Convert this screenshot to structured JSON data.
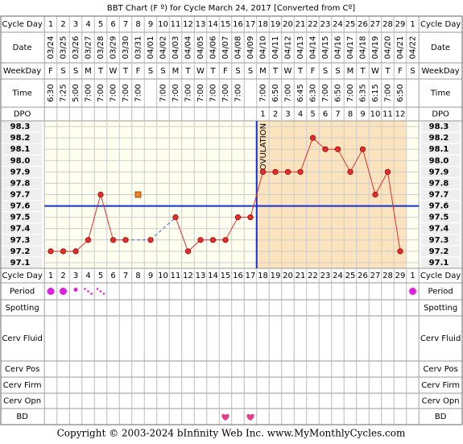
{
  "chart_data": {
    "type": "line",
    "title": "BBT Chart (F º) for Cycle March 24, 2017  [Converted from Cº]",
    "labels": {
      "cycle_day": "Cycle Day",
      "date": "Date",
      "weekday": "WeekDay",
      "time": "Time",
      "dpo": "DPO",
      "period": "Period",
      "spotting": "Spotting",
      "cerv_fluid": "Cerv Fluid",
      "cerv_pos": "Cerv Pos",
      "cerv_firm": "Cerv Firm",
      "cerv_opn": "Cerv Opn",
      "bd": "BD"
    },
    "cycle_days": [
      1,
      2,
      3,
      4,
      5,
      6,
      7,
      8,
      9,
      10,
      11,
      12,
      13,
      14,
      15,
      16,
      17,
      18,
      19,
      20,
      21,
      22,
      23,
      24,
      25,
      26,
      27,
      28,
      29,
      1
    ],
    "dates": [
      "03/24",
      "03/25",
      "03/26",
      "03/27",
      "03/28",
      "03/29",
      "03/30",
      "03/31",
      "04/01",
      "04/02",
      "04/03",
      "04/04",
      "04/05",
      "04/06",
      "04/07",
      "04/08",
      "04/09",
      "04/10",
      "04/11",
      "04/12",
      "04/13",
      "04/14",
      "04/15",
      "04/16",
      "04/17",
      "04/18",
      "04/19",
      "04/20",
      "04/21",
      "04/22"
    ],
    "weekdays": [
      "F",
      "S",
      "S",
      "M",
      "T",
      "W",
      "T",
      "F",
      "S",
      "S",
      "M",
      "T",
      "W",
      "T",
      "F",
      "S",
      "S",
      "M",
      "T",
      "W",
      "T",
      "F",
      "S",
      "S",
      "M",
      "T",
      "W",
      "T",
      "F",
      "S"
    ],
    "times": [
      "6:30",
      "7:25",
      "5:00",
      "7:00",
      "7:00",
      "7:00",
      "7:00",
      "7:00",
      null,
      "7:00",
      "7:00",
      "7:00",
      "7:00",
      "7:00",
      "7:00",
      "7:00",
      null,
      "7:00",
      "6:50",
      "7:00",
      "6:45",
      "6:30",
      "7:00",
      "6:50",
      "7:00",
      "6:35",
      "6:15",
      "7:00",
      "6:50",
      null
    ],
    "dpo": [
      null,
      null,
      null,
      null,
      null,
      null,
      null,
      null,
      null,
      null,
      null,
      null,
      null,
      null,
      null,
      null,
      null,
      1,
      2,
      3,
      4,
      5,
      6,
      7,
      8,
      9,
      10,
      11,
      12,
      null
    ],
    "values": [
      97.2,
      97.2,
      97.2,
      97.3,
      97.7,
      97.3,
      97.3,
      null,
      97.3,
      null,
      97.5,
      97.2,
      97.3,
      97.3,
      97.3,
      97.5,
      97.5,
      97.9,
      97.9,
      97.9,
      97.9,
      98.2,
      98.1,
      98.1,
      97.9,
      98.1,
      97.7,
      97.9,
      97.2,
      null
    ],
    "color": "#e03030",
    "discarded": [
      null,
      null,
      null,
      null,
      null,
      null,
      null,
      97.7,
      null,
      null,
      null,
      null,
      null,
      null,
      null,
      null,
      null,
      null,
      null,
      null,
      null,
      null,
      null,
      null,
      null,
      null,
      null,
      null,
      null,
      null
    ],
    "discarded_color": "#f08020",
    "coverline": 97.6,
    "coverline_color": "#1030d0",
    "ovulation_day": 17,
    "ovulation_label": "OVULATION",
    "luteal_color": "#fbe3bd",
    "ylim": [
      97.05,
      98.35
    ],
    "yticks": [
      98.3,
      98.2,
      98.1,
      {
        "value": 98.0,
        "label": "98.0"
      },
      97.9,
      97.8,
      97.7,
      97.6,
      97.5,
      97.4,
      97.3,
      97.2,
      97.1
    ],
    "period": [
      "heavy",
      "heavy",
      "medium",
      "light",
      "light",
      null,
      null,
      null,
      null,
      null,
      null,
      null,
      null,
      null,
      null,
      null,
      null,
      null,
      null,
      null,
      null,
      null,
      null,
      null,
      null,
      null,
      null,
      null,
      null,
      "heavy"
    ],
    "period_color": "#e020e0",
    "bd": [
      false,
      false,
      false,
      false,
      false,
      false,
      false,
      false,
      false,
      false,
      false,
      false,
      false,
      false,
      true,
      false,
      true,
      false,
      false,
      false,
      false,
      false,
      false,
      false,
      false,
      false,
      false,
      false,
      false,
      false
    ],
    "bd_color": "#e0408a",
    "footer": "Copyright © 2003-2024 bInfinity Web Inc.    www.MyMonthlyCycles.com"
  }
}
